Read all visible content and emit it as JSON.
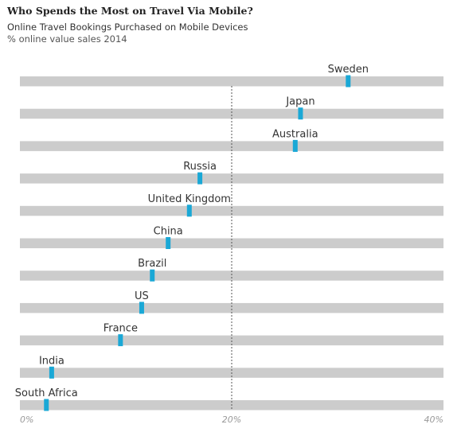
{
  "chart_data": {
    "type": "bar",
    "title": "Who Spends the Most on Travel Via Mobile?",
    "subtitle": "Online Travel Bookings Purchased on Mobile Devices",
    "unit_label": "% online value sales 2014",
    "xlim": [
      0,
      40
    ],
    "reference_line": 20,
    "x_ticks": [
      "0%",
      "20%",
      "40%"
    ],
    "categories": [
      "Sweden",
      "Japan",
      "Australia",
      "Russia",
      "United Kingdom",
      "China",
      "Brazil",
      "US",
      "France",
      "India",
      "South Africa"
    ],
    "values": [
      31,
      26.5,
      26,
      17,
      16,
      14,
      12.5,
      11.5,
      9.5,
      3,
      2.5
    ],
    "colors": {
      "track": "#cccccc",
      "marker": "#1aa8d6",
      "reference": "#555555",
      "tick": "#999999",
      "label": "#333333"
    }
  }
}
